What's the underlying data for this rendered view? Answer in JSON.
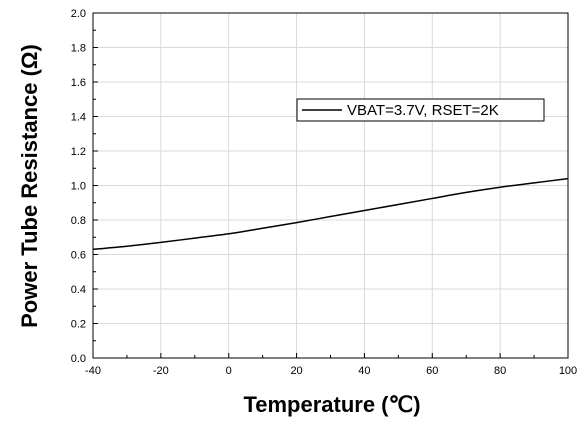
{
  "chart_data": {
    "type": "line",
    "xlabel": "Temperature (℃)",
    "ylabel": "Power Tube Resistance (Ω)",
    "xlim": [
      -40,
      100
    ],
    "ylim": [
      0,
      2.0
    ],
    "xticks": [
      -40,
      -20,
      0,
      20,
      40,
      60,
      80,
      100
    ],
    "yticks": [
      "0.0",
      "0.2",
      "0.4",
      "0.6",
      "0.8",
      "1.0",
      "1.2",
      "1.4",
      "1.6",
      "1.8",
      "2.0"
    ],
    "grid": true,
    "legend_position": "top-right",
    "series": [
      {
        "name": "VBAT=3.7V, RSET=2K",
        "color": "#000000",
        "x": [
          -40,
          -30,
          -20,
          -10,
          0,
          10,
          20,
          30,
          40,
          50,
          60,
          70,
          80,
          90,
          100
        ],
        "y": [
          0.63,
          0.648,
          0.67,
          0.695,
          0.72,
          0.752,
          0.785,
          0.82,
          0.855,
          0.89,
          0.925,
          0.96,
          0.99,
          1.015,
          1.04
        ]
      }
    ]
  }
}
